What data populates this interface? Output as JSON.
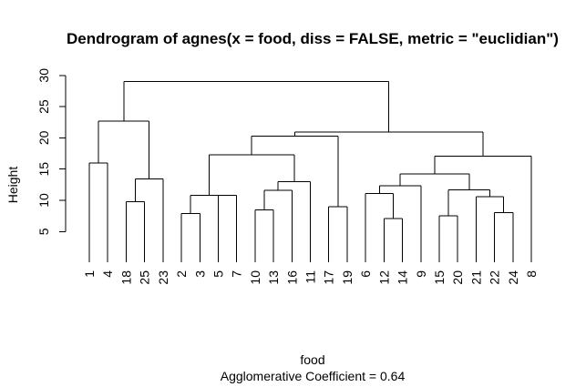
{
  "chart_data": {
    "type": "dendrogram",
    "title": "Dendrogram of  agnes(x = food, diss = FALSE, metric = \"euclidian\")",
    "ylabel": "Height",
    "xlabel": "food",
    "sub": "Agglomerative Coefficient =  0.64",
    "ylim": [
      0,
      30
    ],
    "yticks": [
      5,
      10,
      15,
      20,
      25,
      30
    ],
    "leaf_order": [
      "1",
      "4",
      "18",
      "25",
      "23",
      "2",
      "3",
      "5",
      "7",
      "10",
      "13",
      "16",
      "11",
      "17",
      "19",
      "6",
      "12",
      "14",
      "9",
      "15",
      "20",
      "21",
      "22",
      "24",
      "8"
    ],
    "merges": [
      {
        "left": "L0",
        "right": "L1",
        "height": 16.0
      },
      {
        "left": "L2",
        "right": "L3",
        "height": 9.8
      },
      {
        "left": "M1",
        "right": "L4",
        "height": 13.4
      },
      {
        "left": "M0",
        "right": "M2",
        "height": 22.7
      },
      {
        "left": "L5",
        "right": "L6",
        "height": 7.9
      },
      {
        "left": "L7",
        "right": "L8",
        "height": 10.8
      },
      {
        "left": "M4",
        "right": "M5",
        "height": 10.8
      },
      {
        "left": "L9",
        "right": "L10",
        "height": 8.5
      },
      {
        "left": "M7",
        "right": "L11",
        "height": 11.6
      },
      {
        "left": "M8",
        "right": "L12",
        "height": 13.0
      },
      {
        "left": "M6",
        "right": "M9",
        "height": 17.3
      },
      {
        "left": "L13",
        "right": "L14",
        "height": 9.0
      },
      {
        "left": "M10",
        "right": "M11",
        "height": 20.3
      },
      {
        "left": "L16",
        "right": "L17",
        "height": 7.1
      },
      {
        "left": "L15",
        "right": "M13",
        "height": 11.1
      },
      {
        "left": "M14",
        "right": "L18",
        "height": 12.3
      },
      {
        "left": "L19",
        "right": "L20",
        "height": 7.5
      },
      {
        "left": "L22",
        "right": "L23",
        "height": 8.0
      },
      {
        "left": "L21",
        "right": "M17",
        "height": 10.6
      },
      {
        "left": "M16",
        "right": "M18",
        "height": 11.7
      },
      {
        "left": "M15",
        "right": "M19",
        "height": 14.2
      },
      {
        "left": "M20",
        "right": "L24",
        "height": 17.1
      },
      {
        "left": "M12",
        "right": "M21",
        "height": 20.9
      },
      {
        "left": "M3",
        "right": "M22",
        "height": 29.0
      }
    ]
  }
}
